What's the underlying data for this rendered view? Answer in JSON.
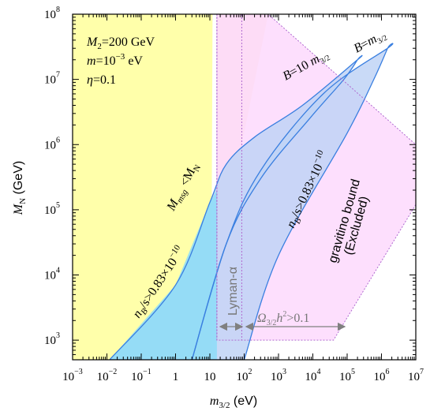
{
  "colors": {
    "excluded_yellow": "#ffffaa",
    "msg_peach": "#fde3c6",
    "gravitino_pink": "#fdd9fd",
    "allowed_blue_dark": "#8cdcf8",
    "allowed_blue_light": "#c0d3f6",
    "contour_line": "#3a7fe0",
    "dotted_line": "#b06bd0",
    "arrow_gray": "#808080"
  },
  "chart_data": {
    "type": "region-plot",
    "xscale": "log",
    "yscale": "log",
    "xlim": [
      0.001,
      10000000
    ],
    "ylim": [
      500,
      100000000
    ],
    "x_ticks": [
      {
        "value": 0.001,
        "base": "10",
        "exp": "−3"
      },
      {
        "value": 0.01,
        "base": "10",
        "exp": "−2"
      },
      {
        "value": 0.1,
        "base": "10",
        "exp": "−1"
      },
      {
        "value": 1,
        "base": "1",
        "exp": ""
      },
      {
        "value": 10,
        "base": "10",
        "exp": ""
      },
      {
        "value": 100,
        "base": "10",
        "exp": "2"
      },
      {
        "value": 1000,
        "base": "10",
        "exp": "3"
      },
      {
        "value": 10000,
        "base": "10",
        "exp": "4"
      },
      {
        "value": 100000,
        "base": "10",
        "exp": "5"
      },
      {
        "value": 1000000,
        "base": "10",
        "exp": "6"
      },
      {
        "value": 10000000,
        "base": "10",
        "exp": "7"
      }
    ],
    "y_ticks": [
      {
        "value": 1000,
        "base": "10",
        "exp": "3"
      },
      {
        "value": 10000,
        "base": "10",
        "exp": "4"
      },
      {
        "value": 100000,
        "base": "10",
        "exp": "5"
      },
      {
        "value": 1000000,
        "base": "10",
        "exp": "6"
      },
      {
        "value": 10000000,
        "base": "10",
        "exp": "7"
      },
      {
        "value": 100000000,
        "base": "10",
        "exp": "8"
      }
    ],
    "xlabel": {
      "symbol": "m",
      "sub": "3/2",
      "unit": " (eV)"
    },
    "ylabel": {
      "symbol": "M",
      "sub": "N",
      "unit": " (GeV)"
    },
    "params": [
      {
        "sym": "M",
        "sub": "2",
        "rest": "=200 GeV"
      },
      {
        "sym": "m",
        "rest": "=10",
        "sup": "−3",
        "tail": " eV"
      },
      {
        "sym": "η",
        "rest": "=0.1"
      }
    ],
    "regions": [
      {
        "id": "msg-excluded",
        "label_sym": "M",
        "label_sub": "msg",
        "label_rest": " <M",
        "label_sub2": "N",
        "polygon": [
          [
            0.001,
            500
          ],
          [
            11,
            500
          ],
          [
            11,
            1800
          ],
          [
            0.001,
            1800
          ]
        ],
        "boundary": [
          [
            11,
            1800
          ],
          [
            12,
            100000000
          ],
          [
            0.001,
            100000000
          ]
        ],
        "color": "excluded_yellow"
      },
      {
        "id": "lyman-alpha",
        "label": "Lyman-α",
        "x_range": [
          16,
          85
        ],
        "color": "msg_peach"
      },
      {
        "id": "gravitino-bound",
        "label_line1": "gravitino bound",
        "label_line2": "(Excluded)",
        "polygon": [
          [
            16,
            1000
          ],
          [
            16,
            100000000
          ],
          [
            500,
            100000000
          ],
          [
            10000000,
            1000000
          ],
          [
            10000000,
            120000
          ],
          [
            40000,
            1000
          ]
        ],
        "color": "gravitino_pink"
      },
      {
        "id": "relic-density",
        "label_sym": "Ω",
        "label_sub": "3/2",
        "label_rest": "h",
        "label_sup": "2",
        "label_tail": ">0.1",
        "x_range": [
          85,
          40000
        ]
      }
    ],
    "contours": [
      {
        "name": "B=10 m3/2",
        "label_pre": "B",
        "label_rest": "=10 ",
        "label_sym": "m",
        "label_sub": "3/2",
        "upper": [
          [
            0.012,
            500
          ],
          [
            1,
            7000
          ],
          [
            10,
            130000
          ],
          [
            30,
            500000
          ],
          [
            200,
            1300000
          ],
          [
            5000,
            4000000
          ],
          [
            200000,
            20000000
          ]
        ],
        "lower": [
          [
            200000,
            20000000
          ],
          [
            80000,
            10000000
          ],
          [
            8000,
            2500000
          ],
          [
            300,
            300000
          ],
          [
            30,
            30000
          ],
          [
            3,
            500
          ]
        ]
      },
      {
        "name": "B=m3/2",
        "label_pre": "B",
        "label_rest": "=",
        "label_sym": "m",
        "label_sub": "3/2",
        "upper": [
          [
            3,
            500
          ],
          [
            30,
            30000
          ],
          [
            300,
            400000
          ],
          [
            20000,
            6000000
          ],
          [
            1500000,
            30000000
          ]
        ],
        "lower": [
          [
            1500000,
            30000000
          ],
          [
            600000,
            10000000
          ],
          [
            100000,
            1500000
          ],
          [
            1000,
            20000
          ],
          [
            100,
            500
          ]
        ]
      }
    ],
    "band_labels": [
      {
        "sym": "n",
        "sub": "B",
        "rest": "/s>0.83×10",
        "sup": "−10"
      },
      {
        "sym": "n",
        "sub": "B",
        "rest": "/s>0.83×10",
        "sup": "−10"
      }
    ]
  }
}
